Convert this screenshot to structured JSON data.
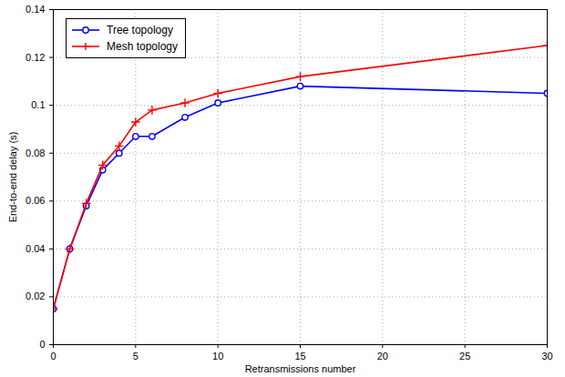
{
  "chart_data": {
    "type": "line",
    "x_label": "Retransmissions number",
    "y_label": "End-to-end delay (s)",
    "x": [
      0,
      1,
      2,
      3,
      4,
      5,
      6,
      8,
      10,
      15,
      30
    ],
    "series": [
      {
        "name": "Tree topology",
        "color": "#0000ff",
        "marker": "circle",
        "line_style": "solid",
        "values": [
          0.015,
          0.04,
          0.058,
          0.073,
          0.08,
          0.087,
          0.087,
          0.095,
          0.101,
          0.108,
          0.105
        ]
      },
      {
        "name": "Mesh topology",
        "color": "#ff0000",
        "marker": "plus",
        "line_style": "solid",
        "values": [
          0.015,
          0.04,
          0.059,
          0.075,
          0.083,
          0.093,
          0.098,
          0.101,
          0.105,
          0.112,
          0.125
        ]
      }
    ],
    "xlim": [
      0,
      30
    ],
    "xticks": [
      0,
      5,
      10,
      15,
      20,
      25,
      30
    ],
    "ylim": [
      0,
      0.14
    ],
    "yticks": [
      0,
      0.02,
      0.04,
      0.06,
      0.08,
      0.1,
      0.12,
      0.14
    ],
    "grid": true,
    "legend": "upper left"
  }
}
